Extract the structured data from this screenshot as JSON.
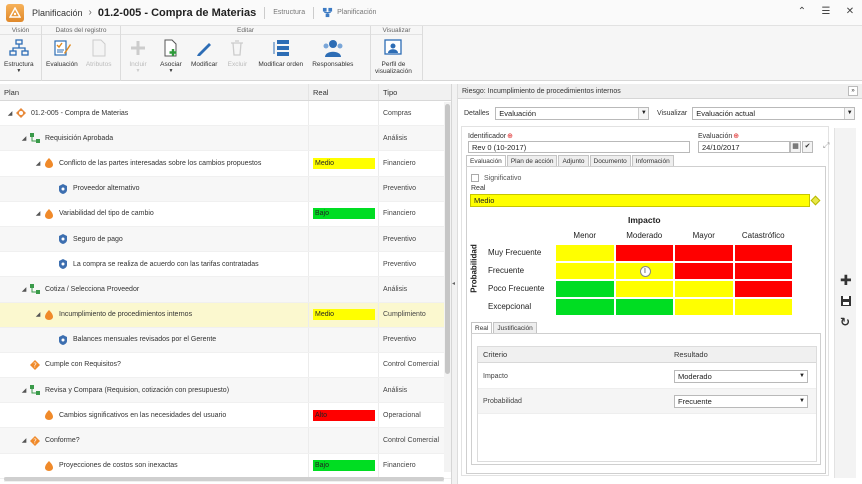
{
  "titlebar": {
    "app_name": "Planificación",
    "doc_title": "01.2-005  - Compra de Materias",
    "link_structure": "Estructura",
    "link_planning": "Planificación"
  },
  "ribbon": {
    "groups": {
      "vision": "Visión",
      "record": "Datos del registro",
      "edit": "Editar",
      "view": "Visualizar"
    },
    "buttons": {
      "estructura": "Estructura",
      "evaluacion": "Evaluación",
      "atributos": "Atributos",
      "incluir": "Incluir",
      "asociar": "Asociar",
      "modificar": "Modificar",
      "excluir": "Excluir",
      "modificar_orden": "Modificar orden",
      "responsables": "Responsables",
      "perfil_line1": "Perfil de",
      "perfil_line2": "visualización"
    }
  },
  "grid": {
    "headers": {
      "plan": "Plan",
      "real": "Real",
      "tipo": "Tipo"
    },
    "rows": [
      {
        "level": 0,
        "toggle": "◢",
        "icon": "process-icon",
        "label": "01.2-005 - Compra de Materias",
        "real": "",
        "real_color": "",
        "tipo": "Compras"
      },
      {
        "level": 1,
        "toggle": "◢",
        "icon": "activity-icon",
        "label": "Requisición Aprobada",
        "real": "",
        "real_color": "",
        "tipo": "Análisis"
      },
      {
        "level": 2,
        "toggle": "◢",
        "icon": "risk-icon",
        "label": "Conflicto de las partes interesadas sobre los cambios propuestos",
        "real": "Medio",
        "real_color": "#ffff00",
        "tipo": "Financiero"
      },
      {
        "level": 3,
        "toggle": "",
        "icon": "control-icon",
        "label": "Proveedor alternativo",
        "real": "",
        "real_color": "",
        "tipo": "Preventivo"
      },
      {
        "level": 2,
        "toggle": "◢",
        "icon": "risk-icon",
        "label": "Variabilidad del tipo de cambio",
        "real": "Bajo",
        "real_color": "#00dd22",
        "tipo": "Financiero"
      },
      {
        "level": 3,
        "toggle": "",
        "icon": "control-icon",
        "label": "Seguro de pago",
        "real": "",
        "real_color": "",
        "tipo": "Preventivo"
      },
      {
        "level": 3,
        "toggle": "",
        "icon": "control-icon",
        "label": "La compra se realiza de acuerdo con las tarifas contratadas",
        "real": "",
        "real_color": "",
        "tipo": "Preventivo"
      },
      {
        "level": 1,
        "toggle": "◢",
        "icon": "activity-icon",
        "label": "Cotiza / Selecciona Proveedor",
        "real": "",
        "real_color": "",
        "tipo": "Análisis"
      },
      {
        "level": 2,
        "toggle": "◢",
        "icon": "risk-icon",
        "label": "Incumplimiento de procedimientos internos",
        "real": "Medio",
        "real_color": "#ffff00",
        "tipo": "Cumplimiento",
        "selected": true
      },
      {
        "level": 3,
        "toggle": "",
        "icon": "control-icon",
        "label": "Balances mensuales revisados por el Gerente",
        "real": "",
        "real_color": "",
        "tipo": "Preventivo"
      },
      {
        "level": 1,
        "toggle": "",
        "icon": "decision-icon",
        "label": "Cumple con Requisitos?",
        "real": "",
        "real_color": "",
        "tipo": "Control Comercial"
      },
      {
        "level": 1,
        "toggle": "◢",
        "icon": "activity-icon",
        "label": "Revisa y Compara (Requision, cotización con presupuesto)",
        "real": "",
        "real_color": "",
        "tipo": "Análisis"
      },
      {
        "level": 2,
        "toggle": "",
        "icon": "risk-icon",
        "label": "Cambios significativos en las necesidades del usuario",
        "real": "Alto",
        "real_color": "#ff0000",
        "tipo": "Operacional"
      },
      {
        "level": 1,
        "toggle": "◢",
        "icon": "decision-icon",
        "label": "Conforme?",
        "real": "",
        "real_color": "",
        "tipo": "Control Comercial"
      },
      {
        "level": 2,
        "toggle": "",
        "icon": "risk-icon",
        "label": "Proyecciones de costos son inexactas",
        "real": "Bajo",
        "real_color": "#00dd22",
        "tipo": "Financiero"
      }
    ]
  },
  "panel": {
    "title": "Riesgo: Incumplimiento de procedimientos internos",
    "detalles_label": "Detalles",
    "detalles_value": "Evaluación",
    "visualizar_label": "Visualizar",
    "visualizar_value": "Evaluación actual",
    "identificador_label": "Identificador",
    "identificador_value": "Rev 0 (10-2017)",
    "evaluacion_label": "Evaluación",
    "evaluacion_value": "24/10/2017",
    "tabs": [
      "Evaluación",
      "Plan de acción",
      "Adjunto",
      "Documento",
      "Información"
    ],
    "significativo_label": "Significativo",
    "real_label": "Real",
    "real_value": "Medio",
    "matrix": {
      "title": "Impacto",
      "y_title": "Probabilidad",
      "cols": [
        "Menor",
        "Moderado",
        "Mayor",
        "Catastrófico"
      ],
      "rows": [
        "Muy Frecuente",
        "Frecuente",
        "Poco Frecuente",
        "Excepcional"
      ],
      "colors": [
        [
          "#ffff00",
          "#ff0000",
          "#ff0000",
          "#ff0000"
        ],
        [
          "#ffff00",
          "#ffff00",
          "#ff0000",
          "#ff0000"
        ],
        [
          "#00dd22",
          "#ffff00",
          "#ffff00",
          "#ff0000"
        ],
        [
          "#00dd22",
          "#00dd22",
          "#ffff00",
          "#ffff00"
        ]
      ],
      "marker": "I"
    },
    "subtabs": [
      "Real",
      "Justificación"
    ],
    "criteria_headers": {
      "criterio": "Criterio",
      "resultado": "Resultado"
    },
    "criteria": [
      {
        "name": "Impacto",
        "value": "Moderado"
      },
      {
        "name": "Probabilidad",
        "value": "Frecuente"
      }
    ]
  }
}
